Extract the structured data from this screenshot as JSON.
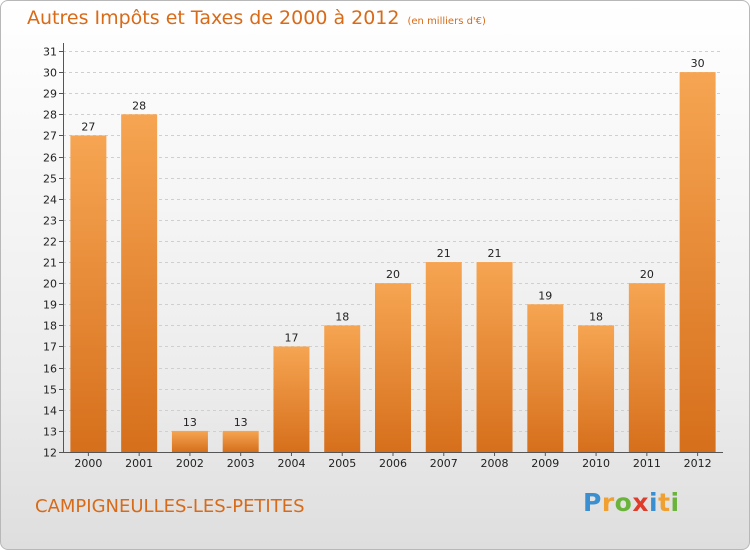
{
  "title": "Autres Impôts et Taxes de 2000 à 2012",
  "subtitle": "(en milliers d'€)",
  "commune": "CAMPIGNEULLES-LES-PETITES",
  "logo": {
    "letters": [
      "P",
      "r",
      "o",
      "x",
      "i",
      "t",
      "i"
    ],
    "colors": [
      "#3a8fd0",
      "#f0a030",
      "#6ab43c",
      "#e03c2c",
      "#3a8fd0",
      "#f0a030",
      "#6ab43c"
    ]
  },
  "colors": {
    "bar_light": "#f6a552",
    "bar_dark": "#d66f1c",
    "title": "#d86a18",
    "grid": "#cfcfcf"
  },
  "chart_data": {
    "type": "bar",
    "categories": [
      "2000",
      "2001",
      "2002",
      "2003",
      "2004",
      "2005",
      "2006",
      "2007",
      "2008",
      "2009",
      "2010",
      "2011",
      "2012"
    ],
    "values": [
      27,
      28,
      13,
      13,
      17,
      18,
      20,
      21,
      21,
      19,
      18,
      20,
      30
    ],
    "data_labels": [
      "27",
      "28",
      "13",
      "13",
      "17",
      "18",
      "20",
      "21",
      "21",
      "19",
      "18",
      "20",
      "30"
    ],
    "y_ticks": [
      "12",
      "13",
      "14",
      "15",
      "16",
      "17",
      "18",
      "19",
      "20",
      "21",
      "22",
      "23",
      "24",
      "25",
      "26",
      "27",
      "28",
      "29",
      "30",
      "31"
    ],
    "ylim": [
      12,
      31
    ],
    "grid": true,
    "legend": "none"
  }
}
